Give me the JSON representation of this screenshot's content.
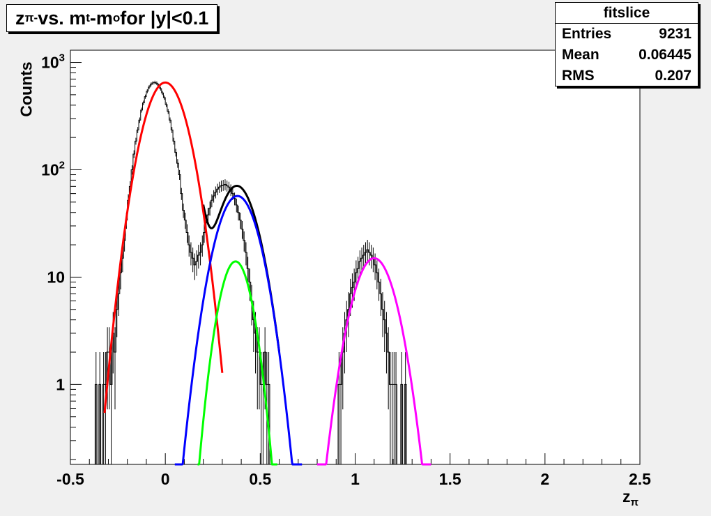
{
  "chart_data": {
    "type": "line",
    "title": {
      "prefix": "z",
      "prefix_sub": "π-",
      "middle": " vs. m",
      "middle_sub": "t",
      "dash": "-m",
      "dash_sub": "o",
      "suffix": " for |y|<0.1"
    },
    "xlabel": {
      "main": "z",
      "sub": "π"
    },
    "ylabel": "Counts",
    "xlim": [
      -0.5,
      2.5
    ],
    "ylim": [
      0.18,
      1300
    ],
    "yscale": "log",
    "grid": false,
    "x_ticks": [
      "-0.5",
      "0",
      "0.5",
      "1",
      "1.5",
      "2",
      "2.5"
    ],
    "x_tick_values": [
      -0.5,
      0,
      0.5,
      1,
      1.5,
      2,
      2.5
    ],
    "y_ticks": [
      {
        "value": 1,
        "base": "1",
        "exp": ""
      },
      {
        "value": 10,
        "base": "10",
        "exp": ""
      },
      {
        "value": 100,
        "base": "10",
        "exp": "2"
      },
      {
        "value": 1000,
        "base": "10",
        "exp": "3"
      }
    ],
    "stats": {
      "title": "fitslice",
      "rows": [
        {
          "label": "Entries",
          "value": "9231"
        },
        {
          "label": "Mean",
          "value": "0.06445"
        },
        {
          "label": "RMS",
          "value": "0.207"
        }
      ]
    },
    "histogram": {
      "bin_width": 0.01,
      "bin_low_edges": [
        -0.38,
        -0.37,
        -0.36,
        -0.35,
        -0.34,
        -0.33,
        -0.32,
        -0.31,
        -0.3,
        -0.29,
        -0.28,
        -0.27,
        -0.26,
        -0.25,
        -0.24,
        -0.23,
        -0.22,
        -0.21,
        -0.2,
        -0.19,
        -0.18,
        -0.17,
        -0.16,
        -0.15,
        -0.14,
        -0.13,
        -0.12,
        -0.11,
        -0.1,
        -0.09,
        -0.08,
        -0.07,
        -0.06,
        -0.05,
        -0.04,
        -0.03,
        -0.02,
        -0.01,
        0.0,
        0.01,
        0.02,
        0.03,
        0.04,
        0.05,
        0.06,
        0.07,
        0.08,
        0.09,
        0.1,
        0.11,
        0.12,
        0.13,
        0.14,
        0.15,
        0.16,
        0.17,
        0.18,
        0.19,
        0.2,
        0.21,
        0.22,
        0.23,
        0.24,
        0.25,
        0.26,
        0.27,
        0.28,
        0.29,
        0.3,
        0.31,
        0.32,
        0.33,
        0.34,
        0.35,
        0.36,
        0.37,
        0.38,
        0.39,
        0.4,
        0.41,
        0.42,
        0.43,
        0.44,
        0.45,
        0.46,
        0.47,
        0.48,
        0.49,
        0.5,
        0.51,
        0.52,
        0.53,
        0.54,
        0.55,
        0.56,
        0.57,
        0.58,
        0.59,
        0.6,
        0.61,
        0.62,
        0.63,
        0.64,
        0.65,
        0.66,
        0.67,
        0.68,
        0.69,
        0.7,
        0.71,
        0.72,
        0.73,
        0.74,
        0.75,
        0.76,
        0.77,
        0.78,
        0.79,
        0.8,
        0.81,
        0.82,
        0.83,
        0.84,
        0.85,
        0.86,
        0.87,
        0.88,
        0.89,
        0.9,
        0.91,
        0.92,
        0.93,
        0.94,
        0.95,
        0.96,
        0.97,
        0.98,
        0.99,
        1.0,
        1.01,
        1.02,
        1.03,
        1.04,
        1.05,
        1.06,
        1.07,
        1.08,
        1.09,
        1.1,
        1.11,
        1.12,
        1.13,
        1.14,
        1.15,
        1.16,
        1.17,
        1.18,
        1.19,
        1.2,
        1.21,
        1.22,
        1.23,
        1.24,
        1.25,
        1.26,
        1.27,
        1.28,
        1.29,
        1.3,
        1.31,
        1.32,
        1.33,
        1.34,
        1.35,
        1.36,
        1.37,
        1.38,
        1.39,
        1.4
      ],
      "counts": [
        0,
        1,
        0,
        1,
        0,
        1,
        1,
        2,
        2,
        1,
        3,
        2,
        5,
        7,
        11,
        15,
        22,
        34,
        52,
        70,
        100,
        140,
        185,
        235,
        290,
        360,
        420,
        480,
        540,
        590,
        625,
        645,
        650,
        640,
        610,
        570,
        520,
        470,
        405,
        350,
        290,
        235,
        185,
        145,
        115,
        90,
        60,
        42,
        34,
        26,
        20,
        17,
        15,
        13,
        14,
        16,
        17,
        20,
        26,
        32,
        38,
        44,
        52,
        57,
        62,
        66,
        69,
        71,
        72,
        73,
        71,
        69,
        65,
        60,
        54,
        47,
        40,
        34,
        28,
        22,
        17,
        12,
        9,
        6,
        4,
        3,
        2,
        2,
        1,
        1,
        2,
        1,
        1,
        0,
        0,
        0,
        0,
        0,
        0,
        0,
        0,
        0,
        0,
        0,
        0,
        0,
        0,
        0,
        0,
        0,
        0,
        0,
        0,
        0,
        0,
        0,
        0,
        0,
        0,
        0,
        0,
        0,
        0,
        0,
        0,
        0,
        0,
        0,
        0,
        1,
        1,
        2,
        3,
        4,
        5,
        7,
        8,
        9,
        11,
        12,
        14,
        15,
        16,
        17,
        18,
        17,
        16,
        15,
        13,
        11,
        9,
        7,
        5,
        4,
        3,
        2,
        1,
        1,
        1,
        1,
        0,
        0,
        1,
        0,
        1,
        0,
        0,
        0,
        0,
        0,
        0,
        0
      ],
      "errors_shown": true
    },
    "series": [
      {
        "name": "",
        "color": "#000000",
        "function": "sum",
        "x_range": [
          0.2,
          0.6
        ]
      },
      {
        "name": "",
        "color": "#ff0000",
        "function": "gaussian",
        "amplitude": 650,
        "mean": 0.0,
        "sigma": 0.085,
        "x_range": [
          -0.32,
          0.3
        ]
      },
      {
        "name": "",
        "color": "#0000ff",
        "function": "gaussian",
        "amplitude": 57,
        "mean": 0.38,
        "sigma": 0.085,
        "x_range": [
          0.05,
          0.72
        ]
      },
      {
        "name": "",
        "color": "#00ff00",
        "function": "gaussian",
        "amplitude": 14,
        "mean": 0.37,
        "sigma": 0.065,
        "x_range": [
          0.17,
          0.59
        ]
      },
      {
        "name": "",
        "color": "#ff00ff",
        "function": "gaussian",
        "amplitude": 15,
        "mean": 1.1,
        "sigma": 0.085,
        "x_range": [
          0.8,
          1.4
        ]
      }
    ]
  }
}
